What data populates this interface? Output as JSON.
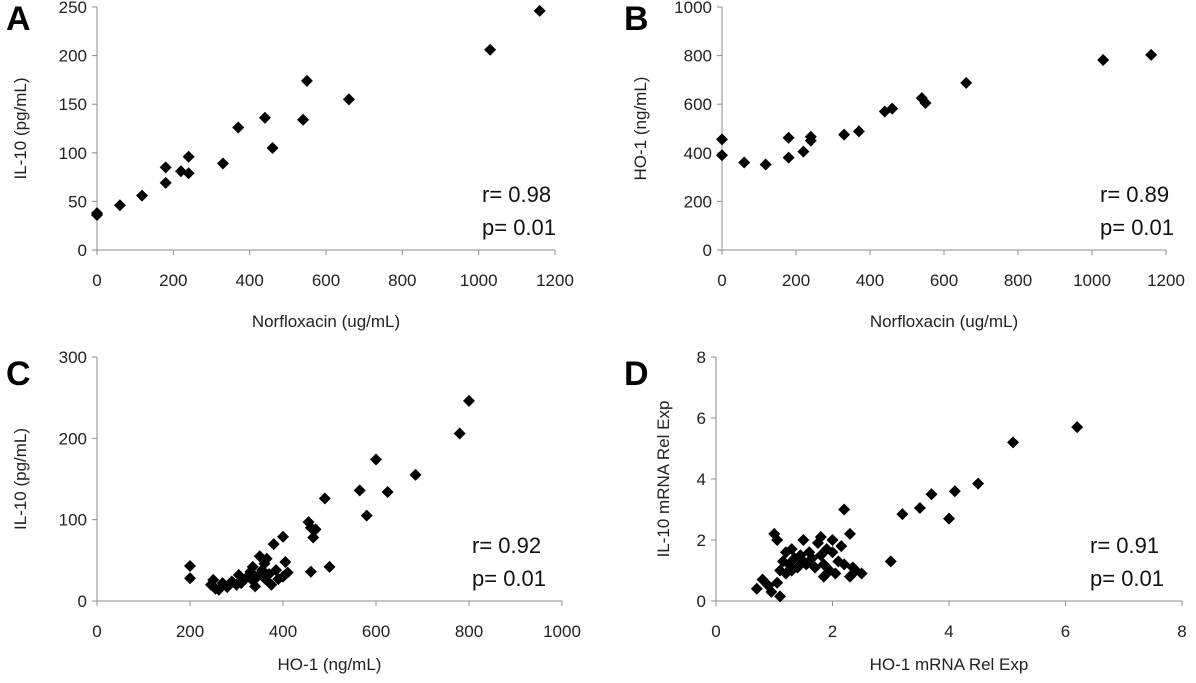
{
  "chart_data": [
    {
      "panel": "A",
      "type": "scatter",
      "title": "",
      "xlabel": "Norfloxacin (ug/mL)",
      "ylabel": "IL-10 (pg/mL)",
      "xlim": [
        0,
        1200
      ],
      "ylim": [
        0,
        250
      ],
      "xticks": [
        0,
        200,
        400,
        600,
        800,
        1000,
        1200
      ],
      "yticks": [
        0,
        50,
        100,
        150,
        200,
        250
      ],
      "annotations": [
        "r= 0.98",
        "p= 0.01"
      ],
      "grid": false,
      "marker": "diamond",
      "color": "#000000",
      "points": [
        [
          0,
          38
        ],
        [
          0,
          36
        ],
        [
          60,
          46
        ],
        [
          118,
          56
        ],
        [
          180,
          85
        ],
        [
          180,
          69
        ],
        [
          220,
          81
        ],
        [
          240,
          79
        ],
        [
          240,
          96
        ],
        [
          330,
          89
        ],
        [
          370,
          126
        ],
        [
          440,
          136
        ],
        [
          460,
          105
        ],
        [
          540,
          134
        ],
        [
          550,
          174
        ],
        [
          660,
          155
        ],
        [
          1030,
          206
        ],
        [
          1160,
          246
        ]
      ]
    },
    {
      "panel": "B",
      "type": "scatter",
      "title": "",
      "xlabel": "Norfloxacin (ug/mL)",
      "ylabel": "HO-1 (ng/mL)",
      "xlim": [
        0,
        1200
      ],
      "ylim": [
        0,
        1000
      ],
      "xticks": [
        0,
        200,
        400,
        600,
        800,
        1000,
        1200
      ],
      "yticks": [
        0,
        200,
        400,
        600,
        800,
        1000
      ],
      "annotations": [
        "r= 0.89",
        "p= 0.01"
      ],
      "grid": false,
      "marker": "diamond",
      "color": "#000000",
      "points": [
        [
          0,
          455
        ],
        [
          0,
          390
        ],
        [
          60,
          360
        ],
        [
          118,
          352
        ],
        [
          180,
          462
        ],
        [
          180,
          380
        ],
        [
          220,
          405
        ],
        [
          240,
          450
        ],
        [
          240,
          466
        ],
        [
          330,
          475
        ],
        [
          370,
          488
        ],
        [
          440,
          570
        ],
        [
          460,
          582
        ],
        [
          540,
          625
        ],
        [
          550,
          605
        ],
        [
          660,
          688
        ],
        [
          1030,
          782
        ],
        [
          1160,
          803
        ]
      ]
    },
    {
      "panel": "C",
      "type": "scatter",
      "title": "",
      "xlabel": "HO-1 (ng/mL)",
      "ylabel": "IL-10 (pg/mL)",
      "xlim": [
        0,
        1000
      ],
      "ylim": [
        0,
        300
      ],
      "xticks": [
        0,
        200,
        400,
        600,
        800,
        1000
      ],
      "yticks": [
        0,
        100,
        200,
        300
      ],
      "annotations": [
        "r= 0.92",
        "p= 0.01"
      ],
      "grid": false,
      "marker": "diamond",
      "color": "#000000",
      "points": [
        [
          200,
          43
        ],
        [
          200,
          28
        ],
        [
          245,
          20
        ],
        [
          250,
          26
        ],
        [
          255,
          15
        ],
        [
          262,
          14
        ],
        [
          270,
          22
        ],
        [
          280,
          17
        ],
        [
          290,
          24
        ],
        [
          300,
          20
        ],
        [
          305,
          32
        ],
        [
          310,
          22
        ],
        [
          320,
          28
        ],
        [
          330,
          36
        ],
        [
          335,
          42
        ],
        [
          335,
          25
        ],
        [
          340,
          18
        ],
        [
          345,
          30
        ],
        [
          350,
          55
        ],
        [
          355,
          38
        ],
        [
          360,
          46
        ],
        [
          362,
          27
        ],
        [
          365,
          52
        ],
        [
          370,
          33
        ],
        [
          375,
          20
        ],
        [
          380,
          70
        ],
        [
          385,
          38
        ],
        [
          390,
          27
        ],
        [
          400,
          79
        ],
        [
          400,
          30
        ],
        [
          405,
          48
        ],
        [
          410,
          35
        ],
        [
          455,
          97
        ],
        [
          460,
          90
        ],
        [
          465,
          78
        ],
        [
          470,
          88
        ],
        [
          460,
          36
        ],
        [
          490,
          126
        ],
        [
          500,
          42
        ],
        [
          565,
          136
        ],
        [
          580,
          105
        ],
        [
          600,
          174
        ],
        [
          625,
          134
        ],
        [
          685,
          155
        ],
        [
          780,
          206
        ],
        [
          800,
          246
        ]
      ]
    },
    {
      "panel": "D",
      "type": "scatter",
      "title": "",
      "xlabel": "HO-1 mRNA Rel Exp",
      "ylabel": "IL-10 mRNA Rel Exp",
      "xlim": [
        0,
        8
      ],
      "ylim": [
        0,
        8
      ],
      "xticks": [
        0,
        2,
        4,
        6,
        8
      ],
      "yticks": [
        0,
        2,
        4,
        6,
        8
      ],
      "annotations": [
        "r= 0.91",
        "p= 0.01"
      ],
      "grid": false,
      "marker": "diamond",
      "color": "#000000",
      "points": [
        [
          0.7,
          0.4
        ],
        [
          0.8,
          0.7
        ],
        [
          0.9,
          0.5
        ],
        [
          0.95,
          0.3
        ],
        [
          1.0,
          2.2
        ],
        [
          1.05,
          2.0
        ],
        [
          1.05,
          0.6
        ],
        [
          1.1,
          1.0
        ],
        [
          1.1,
          0.15
        ],
        [
          1.15,
          1.3
        ],
        [
          1.2,
          1.6
        ],
        [
          1.2,
          0.9
        ],
        [
          1.25,
          1.2
        ],
        [
          1.3,
          1.7
        ],
        [
          1.3,
          1.0
        ],
        [
          1.35,
          1.4
        ],
        [
          1.4,
          1.1
        ],
        [
          1.45,
          1.5
        ],
        [
          1.5,
          1.3
        ],
        [
          1.5,
          2.0
        ],
        [
          1.55,
          1.2
        ],
        [
          1.6,
          1.6
        ],
        [
          1.65,
          1.4
        ],
        [
          1.7,
          1.1
        ],
        [
          1.75,
          1.9
        ],
        [
          1.8,
          1.5
        ],
        [
          1.8,
          2.1
        ],
        [
          1.85,
          0.8
        ],
        [
          1.85,
          1.2
        ],
        [
          1.9,
          1.7
        ],
        [
          1.95,
          1.0
        ],
        [
          2.0,
          1.6
        ],
        [
          2.0,
          2.0
        ],
        [
          2.05,
          0.9
        ],
        [
          2.1,
          1.3
        ],
        [
          2.15,
          1.8
        ],
        [
          2.2,
          1.2
        ],
        [
          2.2,
          3.0
        ],
        [
          2.3,
          2.2
        ],
        [
          2.35,
          1.1
        ],
        [
          2.4,
          1.0
        ],
        [
          2.5,
          0.9
        ],
        [
          2.3,
          0.8
        ],
        [
          3.0,
          1.3
        ],
        [
          3.2,
          2.85
        ],
        [
          3.5,
          3.05
        ],
        [
          3.7,
          3.5
        ],
        [
          4.0,
          2.7
        ],
        [
          4.1,
          3.6
        ],
        [
          4.5,
          3.85
        ],
        [
          5.1,
          5.2
        ],
        [
          6.2,
          5.7
        ]
      ]
    }
  ]
}
